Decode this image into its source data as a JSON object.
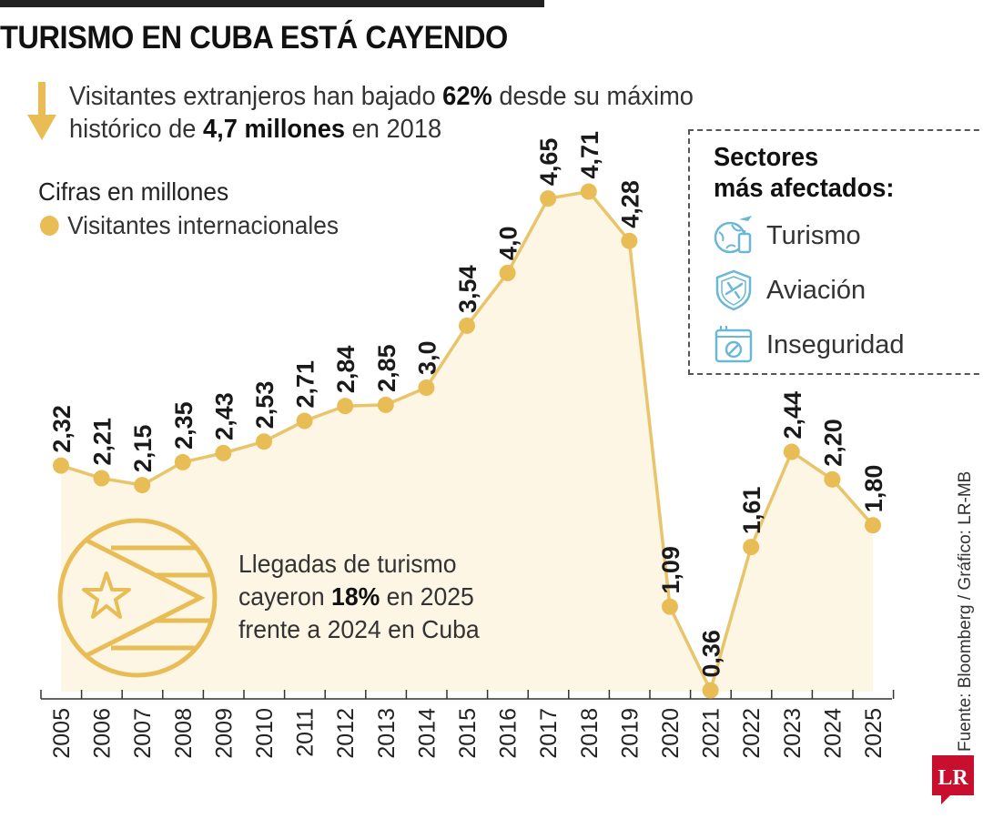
{
  "header": {
    "title": "TURISMO EN CUBA ESTÁ CAYENDO",
    "subtitle_line1_pre": "Visitantes extranjeros han bajado ",
    "subtitle_line1_bold": "62%",
    "subtitle_line1_post": " desde su máximo",
    "subtitle_line2_pre": "histórico de ",
    "subtitle_line2_bold": "4,7 millones",
    "subtitle_line2_post": " en 2018"
  },
  "unit_label": "Cifras en millones",
  "sectors": {
    "title_line1": "Sectores",
    "title_line2": "más afectados:",
    "items": [
      {
        "label": "Turismo",
        "icon": "travel-icon"
      },
      {
        "label": "Aviación",
        "icon": "aviation-shield-icon"
      },
      {
        "label": "Inseguridad",
        "icon": "insecurity-screen-icon"
      }
    ]
  },
  "callout": {
    "line1": "Llegadas de turismo",
    "line2_pre": "cayeron ",
    "line2_bold": "18%",
    "line2_post": " en 2025",
    "line3": "frente a 2024 en Cuba",
    "icon": "cuba-flag-icon"
  },
  "source": "Fuente: Bloomberg / Gráfico: LR-MB",
  "logo_text": "LR",
  "colors": {
    "accent": "#e9bd55",
    "area": "#fdf6e4",
    "line": "#e8c46a",
    "text": "#1a1a1a"
  },
  "chart_data": {
    "type": "line",
    "x": [
      "2005",
      "2006",
      "2007",
      "2008",
      "2009",
      "2010",
      "2011",
      "2012",
      "2013",
      "2014",
      "2015",
      "2016",
      "2017",
      "2018",
      "2019",
      "2020",
      "2021",
      "2022",
      "2023",
      "2024",
      "2025"
    ],
    "series": [
      {
        "name": "Visitantes internacionales",
        "values": [
          2.32,
          2.21,
          2.15,
          2.35,
          2.43,
          2.53,
          2.71,
          2.84,
          2.85,
          3.0,
          3.54,
          4.0,
          4.65,
          4.71,
          4.28,
          1.09,
          0.36,
          1.61,
          2.44,
          2.2,
          1.8
        ],
        "labels": [
          "2,32",
          "2,21",
          "2,15",
          "2,35",
          "2,43",
          "2,53",
          "2,71",
          "2,84",
          "2,85",
          "3,0",
          "3,54",
          "4,0",
          "4,65",
          "4,71",
          "4,28",
          "1,09",
          "0,36",
          "1,61",
          "2,44",
          "2,20",
          "1,80"
        ]
      }
    ],
    "grid": false,
    "legend": "top-left"
  }
}
